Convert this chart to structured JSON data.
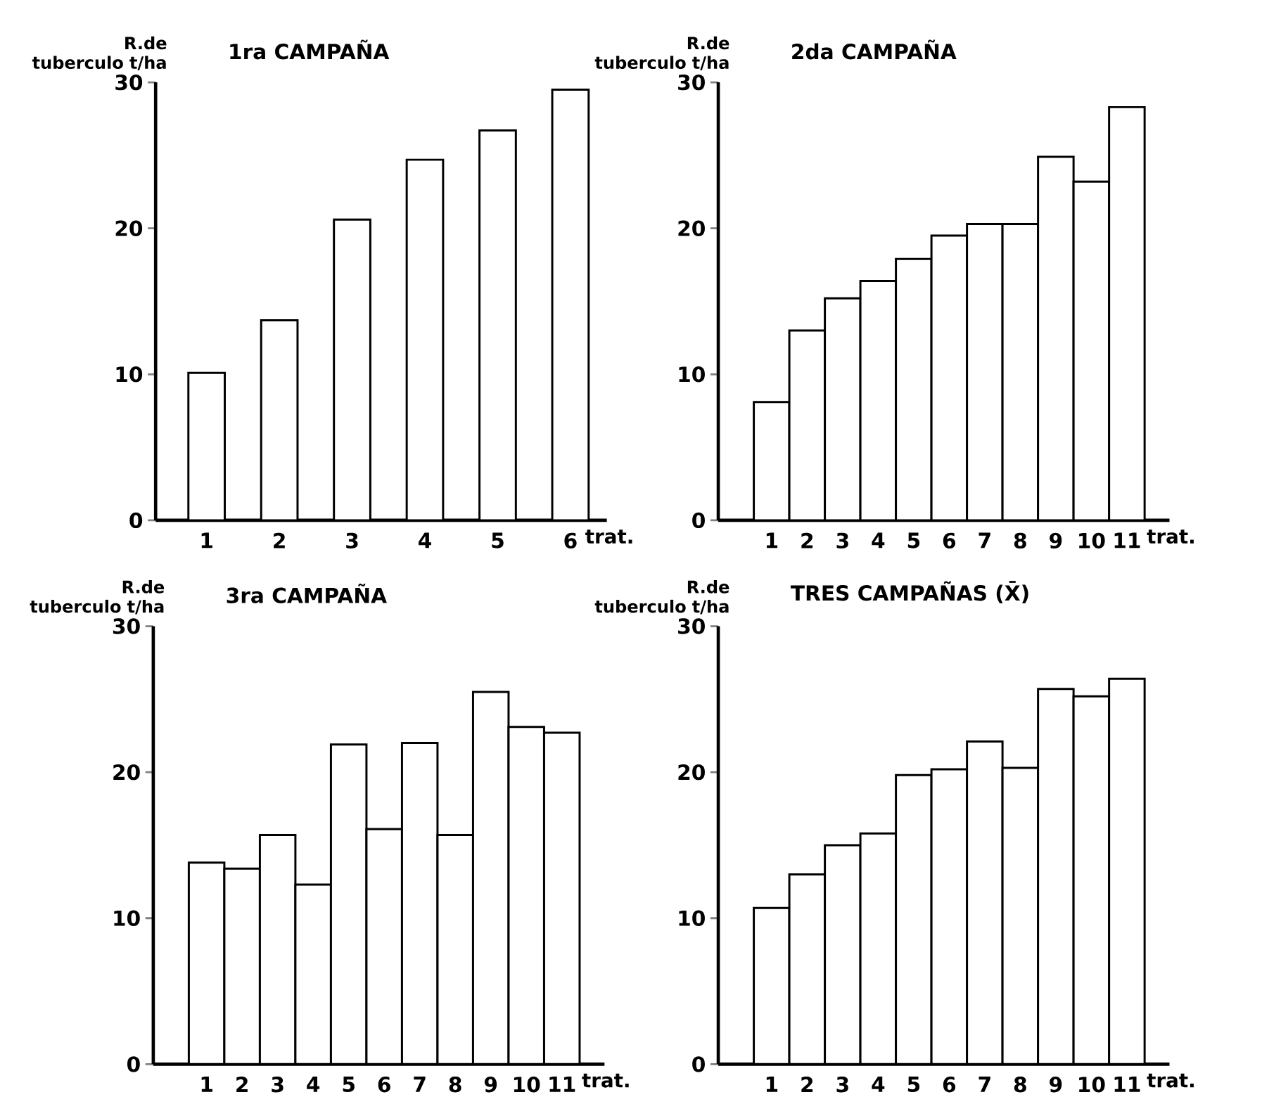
{
  "chart_data": [
    {
      "type": "bar",
      "title": "1ra CAMPAÑA",
      "xlabel": "trat.",
      "ylabel": "R.de tuberculo t/ha",
      "categories": [
        "1",
        "2",
        "3",
        "4",
        "5",
        "6"
      ],
      "values": [
        10.1,
        13.7,
        20.6,
        24.7,
        26.7,
        29.5
      ],
      "color": "#ffffff",
      "ylim": [
        0,
        30
      ],
      "yticks": [
        0,
        10,
        20,
        30
      ]
    },
    {
      "type": "bar",
      "title": "2da CAMPAÑA",
      "xlabel": "trat.",
      "ylabel": "R.de tuberculo t/ha",
      "categories": [
        "1",
        "2",
        "3",
        "4",
        "5",
        "6",
        "7",
        "8",
        "9",
        "10",
        "11"
      ],
      "values": [
        8.1,
        13.0,
        15.2,
        16.4,
        17.9,
        19.5,
        20.3,
        20.3,
        24.9,
        23.2,
        28.3
      ],
      "color": "#ffffff",
      "ylim": [
        0,
        30
      ],
      "yticks": [
        0,
        10,
        20,
        30
      ]
    },
    {
      "type": "bar",
      "title": "3ra CAMPAÑA",
      "xlabel": "trat.",
      "ylabel": "R.de tuberculo t/ha",
      "categories": [
        "1",
        "2",
        "3",
        "4",
        "5",
        "6",
        "7",
        "8",
        "9",
        "10",
        "11"
      ],
      "values": [
        13.8,
        13.4,
        15.7,
        12.3,
        21.9,
        16.1,
        22.0,
        15.7,
        25.5,
        23.1,
        22.7
      ],
      "color": "#ffffff",
      "ylim": [
        0,
        30
      ],
      "yticks": [
        0,
        10,
        20,
        30
      ]
    },
    {
      "type": "bar",
      "title": "TRES CAMPAÑAS (X̄)",
      "xlabel": "trat.",
      "ylabel": "R.de tuberculo t/ha",
      "categories": [
        "1",
        "2",
        "3",
        "4",
        "5",
        "6",
        "7",
        "8",
        "9",
        "10",
        "11"
      ],
      "values": [
        10.7,
        13.0,
        15.0,
        15.8,
        19.8,
        20.2,
        22.1,
        20.3,
        25.7,
        25.2,
        26.4
      ],
      "color": "#ffffff",
      "ylim": [
        0,
        30
      ],
      "yticks": [
        0,
        10,
        20,
        30
      ]
    }
  ]
}
